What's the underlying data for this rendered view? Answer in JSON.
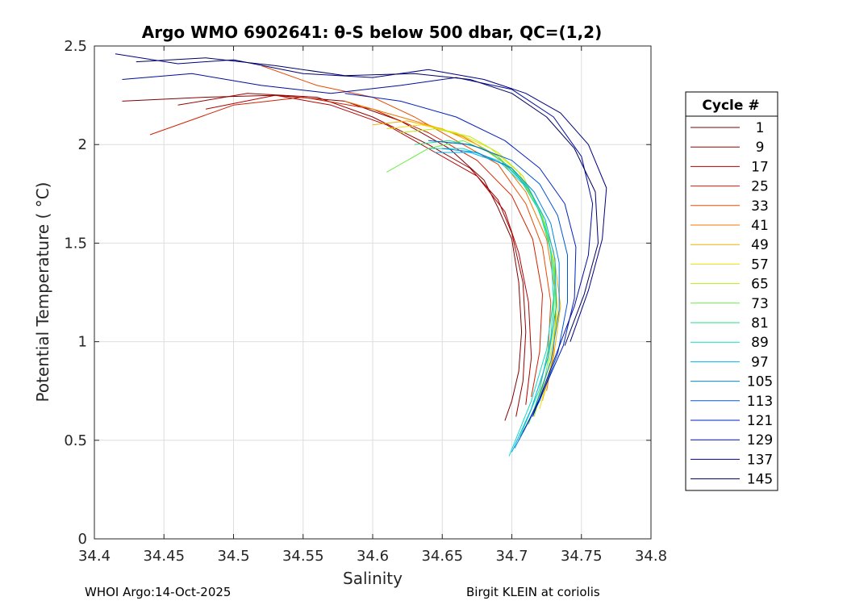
{
  "chart_data": {
    "type": "line",
    "title": "Argo WMO 6902641: θ-S below 500 dbar,  QC=(1,2)",
    "xlabel": "Salinity",
    "ylabel": "Potential Temperature ( °C)",
    "xlim": [
      34.4,
      34.8
    ],
    "ylim": [
      0,
      2.5
    ],
    "xticks": [
      34.4,
      34.45,
      34.5,
      34.55,
      34.6,
      34.65,
      34.7,
      34.75,
      34.8
    ],
    "xtick_labels": [
      "34.4",
      "34.45",
      "34.5",
      "34.55",
      "34.6",
      "34.65",
      "34.7",
      "34.75",
      "34.8"
    ],
    "yticks": [
      0,
      0.5,
      1,
      1.5,
      2,
      2.5
    ],
    "ytick_labels": [
      "0",
      "0.5",
      "1",
      "1.5",
      "2",
      "2.5"
    ],
    "grid": true,
    "legend": {
      "title": "Cycle #",
      "location": "outside-right",
      "entries": [
        {
          "label": "1",
          "color": "#800000"
        },
        {
          "label": "9",
          "color": "#990000"
        },
        {
          "label": "17",
          "color": "#b30000"
        },
        {
          "label": "25",
          "color": "#d22000"
        },
        {
          "label": "33",
          "color": "#ea4a00"
        },
        {
          "label": "41",
          "color": "#f07800"
        },
        {
          "label": "49",
          "color": "#f2b000"
        },
        {
          "label": "57",
          "color": "#f0e000"
        },
        {
          "label": "65",
          "color": "#b4ee10"
        },
        {
          "label": "73",
          "color": "#66ee44"
        },
        {
          "label": "81",
          "color": "#22e088"
        },
        {
          "label": "89",
          "color": "#10d8c8"
        },
        {
          "label": "97",
          "color": "#00b0f0"
        },
        {
          "label": "105",
          "color": "#0086e0"
        },
        {
          "label": "113",
          "color": "#0056d8"
        },
        {
          "label": "121",
          "color": "#0020c0"
        },
        {
          "label": "129",
          "color": "#000c9c"
        },
        {
          "label": "137",
          "color": "#000080"
        },
        {
          "label": "145",
          "color": "#000060"
        }
      ]
    },
    "series": [
      {
        "name": "1",
        "color": "#800000",
        "x": [
          34.42,
          34.48,
          34.53,
          34.58,
          34.62,
          34.655,
          34.68,
          34.69,
          34.7,
          34.705,
          34.707,
          34.705,
          34.7,
          34.695
        ],
        "y": [
          2.22,
          2.24,
          2.25,
          2.22,
          2.12,
          1.98,
          1.82,
          1.68,
          1.52,
          1.3,
          1.05,
          0.85,
          0.7,
          0.6
        ]
      },
      {
        "name": "9",
        "color": "#990000",
        "x": [
          34.46,
          34.51,
          34.56,
          34.6,
          34.64,
          34.67,
          34.69,
          34.7,
          34.708,
          34.71,
          34.708,
          34.703
        ],
        "y": [
          2.2,
          2.26,
          2.24,
          2.14,
          2.0,
          1.88,
          1.72,
          1.55,
          1.3,
          1.05,
          0.8,
          0.62
        ]
      },
      {
        "name": "17",
        "color": "#b30000",
        "x": [
          34.48,
          34.53,
          34.57,
          34.61,
          34.645,
          34.675,
          34.695,
          34.705,
          34.712,
          34.714,
          34.71
        ],
        "y": [
          2.18,
          2.25,
          2.2,
          2.1,
          1.96,
          1.84,
          1.66,
          1.45,
          1.2,
          0.92,
          0.68
        ]
      },
      {
        "name": "25",
        "color": "#d22000",
        "x": [
          34.44,
          34.5,
          34.55,
          34.6,
          34.64,
          34.675,
          34.7,
          34.715,
          34.722,
          34.72,
          34.714
        ],
        "y": [
          2.05,
          2.2,
          2.24,
          2.18,
          2.06,
          1.92,
          1.74,
          1.52,
          1.24,
          0.95,
          0.72
        ]
      },
      {
        "name": "33",
        "color": "#ea4a00",
        "x": [
          34.52,
          34.56,
          34.6,
          34.63,
          34.66,
          34.69,
          34.71,
          34.722,
          34.728,
          34.726,
          34.72
        ],
        "y": [
          2.4,
          2.3,
          2.24,
          2.14,
          2.02,
          1.9,
          1.7,
          1.48,
          1.2,
          0.95,
          0.76
        ]
      },
      {
        "name": "41",
        "color": "#f07800",
        "x": [
          34.58,
          34.61,
          34.64,
          34.665,
          34.69,
          34.71,
          34.725,
          34.732,
          34.73,
          34.725
        ],
        "y": [
          2.22,
          2.16,
          2.1,
          2.04,
          1.94,
          1.76,
          1.52,
          1.22,
          0.95,
          0.75
        ]
      },
      {
        "name": "49",
        "color": "#f2b000",
        "x": [
          34.6,
          34.625,
          34.65,
          34.675,
          34.7,
          34.718,
          34.73,
          34.735,
          34.73,
          34.722
        ],
        "y": [
          2.1,
          2.12,
          2.08,
          2.0,
          1.88,
          1.7,
          1.46,
          1.18,
          0.92,
          0.7
        ]
      },
      {
        "name": "57",
        "color": "#f0e000",
        "x": [
          34.61,
          34.635,
          34.66,
          34.685,
          34.705,
          34.72,
          34.73,
          34.733,
          34.728,
          34.72
        ],
        "y": [
          2.08,
          2.1,
          2.06,
          1.98,
          1.86,
          1.66,
          1.42,
          1.15,
          0.88,
          0.66
        ]
      },
      {
        "name": "65",
        "color": "#b4ee10",
        "x": [
          34.62,
          34.645,
          34.67,
          34.69,
          34.708,
          34.722,
          34.73,
          34.732,
          34.726,
          34.716
        ],
        "y": [
          2.06,
          2.08,
          2.04,
          1.96,
          1.84,
          1.64,
          1.4,
          1.12,
          0.86,
          0.62
        ]
      },
      {
        "name": "73",
        "color": "#66ee44",
        "x": [
          34.61,
          34.64,
          34.665,
          34.69,
          34.71,
          34.724,
          34.731,
          34.73,
          34.724,
          34.712
        ],
        "y": [
          1.86,
          1.98,
          2.02,
          1.94,
          1.8,
          1.6,
          1.36,
          1.08,
          0.82,
          0.58
        ]
      },
      {
        "name": "81",
        "color": "#22e088",
        "x": [
          34.63,
          34.655,
          34.68,
          34.7,
          34.715,
          34.726,
          34.731,
          34.728,
          34.72,
          34.706
        ],
        "y": [
          2.0,
          2.02,
          1.98,
          1.88,
          1.74,
          1.54,
          1.3,
          1.02,
          0.76,
          0.52
        ]
      },
      {
        "name": "89",
        "color": "#10d8c8",
        "x": [
          34.64,
          34.665,
          34.69,
          34.708,
          34.72,
          34.728,
          34.73,
          34.725,
          34.714,
          34.698
        ],
        "y": [
          1.98,
          1.98,
          1.92,
          1.8,
          1.66,
          1.46,
          1.22,
          0.96,
          0.7,
          0.42
        ]
      },
      {
        "name": "97",
        "color": "#00b0f0",
        "x": [
          34.645,
          34.67,
          34.695,
          34.712,
          34.724,
          34.731,
          34.732,
          34.726,
          34.714,
          34.7
        ],
        "y": [
          1.96,
          1.96,
          1.9,
          1.78,
          1.62,
          1.42,
          1.18,
          0.92,
          0.66,
          0.44
        ]
      },
      {
        "name": "105",
        "color": "#0086e0",
        "x": [
          34.65,
          34.675,
          34.7,
          34.716,
          34.728,
          34.734,
          34.734,
          34.728,
          34.716,
          34.702
        ],
        "y": [
          1.98,
          1.96,
          1.88,
          1.76,
          1.6,
          1.4,
          1.16,
          0.9,
          0.65,
          0.46
        ]
      },
      {
        "name": "113",
        "color": "#0056d8",
        "x": [
          34.64,
          34.67,
          34.7,
          34.72,
          34.733,
          34.74,
          34.74,
          34.733,
          34.72,
          34.705
        ],
        "y": [
          2.02,
          2.0,
          1.92,
          1.8,
          1.64,
          1.44,
          1.2,
          0.94,
          0.7,
          0.5
        ]
      },
      {
        "name": "121",
        "color": "#0020c0",
        "x": [
          34.58,
          34.62,
          34.66,
          34.695,
          34.72,
          34.738,
          34.746,
          34.745,
          34.737,
          34.722,
          34.708
        ],
        "y": [
          2.26,
          2.22,
          2.14,
          2.02,
          1.88,
          1.7,
          1.48,
          1.22,
          0.98,
          0.74,
          0.54
        ]
      },
      {
        "name": "129",
        "color": "#000c9c",
        "x": [
          34.42,
          34.47,
          34.52,
          34.57,
          34.62,
          34.66,
          34.7,
          34.73,
          34.75,
          34.758,
          34.755,
          34.745,
          34.73,
          34.715
        ],
        "y": [
          2.33,
          2.36,
          2.3,
          2.26,
          2.3,
          2.34,
          2.28,
          2.14,
          1.94,
          1.7,
          1.44,
          1.18,
          0.9,
          0.62
        ]
      },
      {
        "name": "137",
        "color": "#000080",
        "x": [
          34.415,
          34.46,
          34.5,
          34.55,
          34.6,
          34.64,
          34.68,
          34.71,
          34.735,
          34.755,
          34.768,
          34.765,
          34.755,
          34.742
        ],
        "y": [
          2.46,
          2.41,
          2.43,
          2.36,
          2.34,
          2.38,
          2.33,
          2.26,
          2.16,
          2.0,
          1.78,
          1.52,
          1.26,
          1.0
        ]
      },
      {
        "name": "145",
        "color": "#000060",
        "x": [
          34.43,
          34.48,
          34.53,
          34.58,
          34.63,
          34.67,
          34.7,
          34.725,
          34.745,
          34.76,
          34.762,
          34.752,
          34.738
        ],
        "y": [
          2.42,
          2.44,
          2.4,
          2.35,
          2.36,
          2.33,
          2.26,
          2.14,
          1.98,
          1.76,
          1.5,
          1.24,
          0.98
        ]
      }
    ]
  },
  "footer": {
    "left": "WHOI Argo:14-Oct-2025",
    "right": "Birgit KLEIN at coriolis"
  }
}
